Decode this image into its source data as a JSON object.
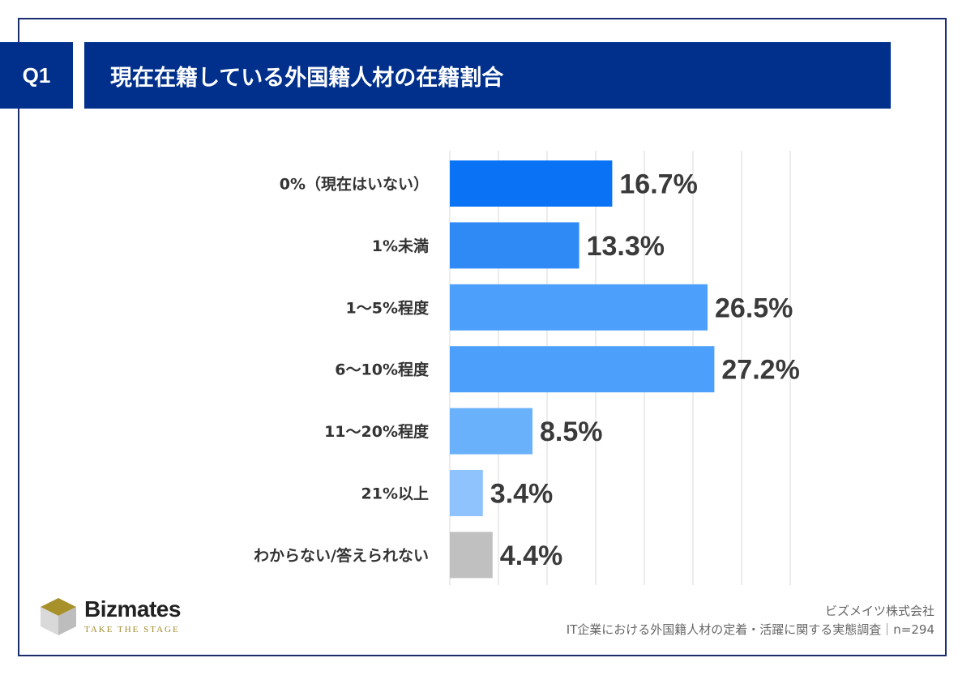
{
  "header": {
    "badge": "Q1",
    "title": "現在在籍している外国籍人材の在籍割合"
  },
  "chart_data": {
    "type": "bar",
    "orientation": "horizontal",
    "title": "現在在籍している外国籍人材の在籍割合",
    "categories": [
      "0%（現在はいない）",
      "1%未満",
      "1〜5%程度",
      "6〜10%程度",
      "11〜20%程度",
      "21%以上",
      "わからない/答えられない"
    ],
    "values": [
      16.7,
      13.3,
      26.5,
      27.2,
      8.5,
      3.4,
      4.4
    ],
    "value_labels": [
      "16.7%",
      "13.3%",
      "26.5%",
      "27.2%",
      "8.5%",
      "3.4%",
      "4.4%"
    ],
    "colors": [
      "#0a72f5",
      "#2f8af5",
      "#4ca0fb",
      "#4ca0fb",
      "#6ab1fc",
      "#8ec3fd",
      "#c0c0c0"
    ],
    "xlim": [
      0,
      35
    ],
    "grid": true,
    "unit": "%"
  },
  "footer": {
    "brand_name": "Bizmates",
    "tagline": "TAKE THE STAGE",
    "company": "ビズメイツ株式会社",
    "survey": "IT企業における外国籍人材の定着・活躍に関する実態調査｜n=294"
  }
}
